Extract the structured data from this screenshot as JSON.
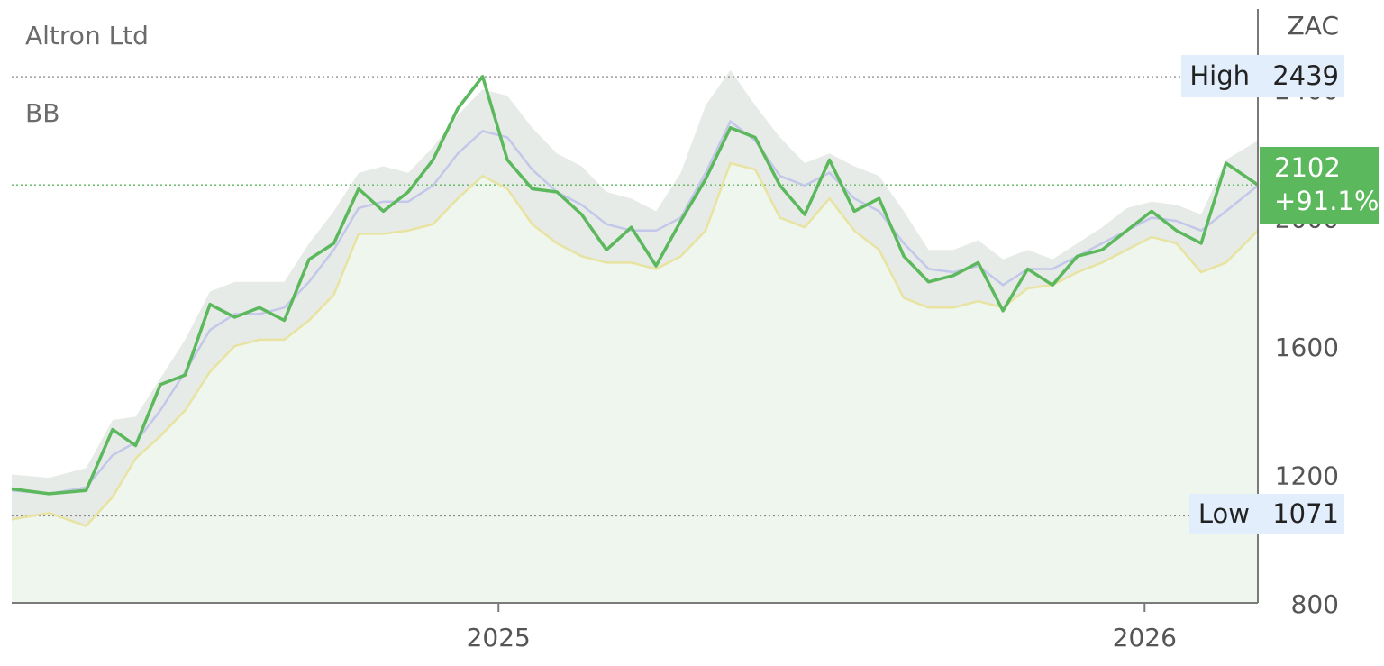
{
  "title": "Altron Ltd",
  "indicator_label": "BB",
  "currency": "ZAC",
  "high": {
    "label": "High",
    "value": "2439"
  },
  "low": {
    "label": "Low",
    "value": "1071"
  },
  "last": {
    "price": "2102",
    "change": "+91.1%"
  },
  "colors": {
    "price_line": "#5cb85c",
    "band_fill": "#dfe4df",
    "lower_band": "#e8e3a0",
    "middle_band": "#c3c8ea",
    "area_fill": "#eef6ee",
    "badge": "#5cb85c",
    "label_box": "#e3eefc"
  },
  "chart_data": {
    "type": "line",
    "title": "Altron Ltd",
    "indicator": "BB",
    "ylabel": "ZAC",
    "ylim": [
      800,
      2650
    ],
    "xlim": [
      "2024-04-01",
      "2026-03-06"
    ],
    "y_ticks": [
      800,
      1200,
      1600,
      2000,
      2400
    ],
    "x_ticks": [
      {
        "label": "2025",
        "date": "2025-01-01"
      },
      {
        "label": "2026",
        "date": "2026-01-01"
      }
    ],
    "high": 2439,
    "low": 1071,
    "last": 2102,
    "change_pct": "+91.1%",
    "grid": false,
    "series": [
      {
        "name": "Altron Ltd",
        "dates": [
          "2024-04-01",
          "2024-04-22",
          "2024-05-13",
          "2024-05-28",
          "2024-06-10",
          "2024-06-24",
          "2024-07-08",
          "2024-07-22",
          "2024-08-05",
          "2024-08-19",
          "2024-09-02",
          "2024-09-16",
          "2024-09-30",
          "2024-10-14",
          "2024-10-28",
          "2024-11-11",
          "2024-11-25",
          "2024-12-09",
          "2024-12-23",
          "2025-01-06",
          "2025-01-20",
          "2025-02-03",
          "2025-02-17",
          "2025-03-03",
          "2025-03-17",
          "2025-03-31",
          "2025-04-14",
          "2025-04-28",
          "2025-05-12",
          "2025-05-26",
          "2025-06-09",
          "2025-06-23",
          "2025-07-07",
          "2025-07-21",
          "2025-08-04",
          "2025-08-18",
          "2025-09-01",
          "2025-09-15",
          "2025-09-29",
          "2025-10-13",
          "2025-10-27",
          "2025-11-10",
          "2025-11-24",
          "2025-12-08",
          "2025-12-22",
          "2026-01-05",
          "2026-01-19",
          "2026-02-02",
          "2026-02-16",
          "2026-03-06"
        ],
        "values": [
          1155,
          1140,
          1150,
          1340,
          1290,
          1480,
          1510,
          1730,
          1690,
          1720,
          1680,
          1870,
          1920,
          2090,
          2020,
          2080,
          2180,
          2340,
          2440,
          2180,
          2090,
          2080,
          2010,
          1900,
          1970,
          1850,
          1990,
          2120,
          2280,
          2250,
          2100,
          2010,
          2180,
          2020,
          2060,
          1880,
          1800,
          1820,
          1860,
          1710,
          1840,
          1790,
          1880,
          1900,
          1960,
          2020,
          1960,
          1920,
          2170,
          2102
        ]
      },
      {
        "name": "upper",
        "values": [
          1200,
          1190,
          1220,
          1370,
          1380,
          1500,
          1620,
          1770,
          1800,
          1800,
          1800,
          1920,
          2020,
          2140,
          2160,
          2140,
          2220,
          2320,
          2400,
          2380,
          2280,
          2200,
          2160,
          2080,
          2060,
          2020,
          2140,
          2350,
          2460,
          2350,
          2250,
          2170,
          2200,
          2160,
          2130,
          2020,
          1900,
          1900,
          1930,
          1870,
          1900,
          1870,
          1920,
          1970,
          2030,
          2050,
          2040,
          2010,
          2180,
          2240
        ]
      },
      {
        "name": "middle",
        "values": [
          1150,
          1140,
          1160,
          1260,
          1300,
          1400,
          1520,
          1650,
          1700,
          1700,
          1720,
          1800,
          1900,
          2030,
          2050,
          2050,
          2100,
          2200,
          2270,
          2250,
          2150,
          2080,
          2040,
          1980,
          1960,
          1960,
          2000,
          2140,
          2300,
          2240,
          2130,
          2100,
          2140,
          2060,
          2020,
          1920,
          1840,
          1830,
          1850,
          1790,
          1840,
          1840,
          1880,
          1920,
          1960,
          2000,
          1990,
          1960,
          2020,
          2100
        ]
      },
      {
        "name": "lower",
        "values": [
          1060,
          1080,
          1040,
          1130,
          1250,
          1320,
          1400,
          1520,
          1600,
          1620,
          1620,
          1680,
          1760,
          1950,
          1950,
          1960,
          1980,
          2060,
          2130,
          2090,
          1980,
          1920,
          1880,
          1860,
          1860,
          1840,
          1880,
          1960,
          2170,
          2150,
          2000,
          1970,
          2060,
          1960,
          1900,
          1750,
          1720,
          1720,
          1740,
          1720,
          1780,
          1790,
          1830,
          1860,
          1900,
          1940,
          1920,
          1830,
          1860,
          1960
        ]
      }
    ]
  }
}
